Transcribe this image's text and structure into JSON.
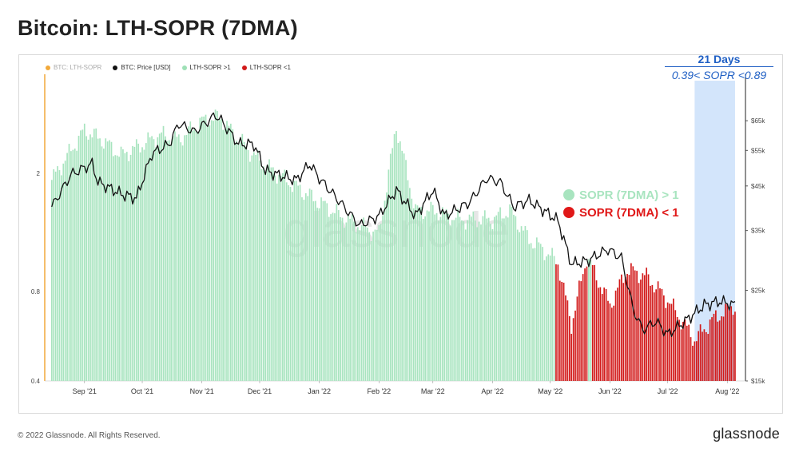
{
  "title": "Bitcoin: LTH-SOPR (7DMA)",
  "legend": [
    {
      "label": "BTC: LTH-SOPR",
      "color": "#f2a93b",
      "faded": true
    },
    {
      "label": "BTC: Price [USD]",
      "color": "#111111",
      "faded": false
    },
    {
      "label": "LTH-SOPR >1",
      "color": "#9ee0b6",
      "faded": false
    },
    {
      "label": "LTH-SOPR <1",
      "color": "#d11a1a",
      "faded": false
    }
  ],
  "callout": {
    "days": "21 Days",
    "range": "0.39< SOPR <0.89"
  },
  "key": [
    {
      "label": "SOPR (7DMA) > 1",
      "color": "#9ee0b6"
    },
    {
      "label": "SOPR (7DMA) < 1",
      "color": "#e01818"
    }
  ],
  "watermark": "glassnode",
  "footer": {
    "copyright": "© 2022 Glassnode. All Rights Reserved.",
    "logo": "glassnode"
  },
  "colors": {
    "green": "#a8e4bf",
    "red": "#d21a1a",
    "price": "#111111",
    "highlight": "#d3e5fb"
  },
  "chart_data": {
    "type": "bar",
    "title": "Bitcoin: LTH-SOPR (7DMA)",
    "x_range": [
      "2022-08-15",
      "2022-08-05"
    ],
    "x_ticks": [
      "Sep '21",
      "Oct '21",
      "Nov '21",
      "Dec '21",
      "Jan '22",
      "Feb '22",
      "Mar '22",
      "Apr '22",
      "May '22",
      "Jun '22",
      "Jul '22",
      "Aug '22"
    ],
    "y_left": {
      "label": "",
      "scale": "log",
      "ticks": [
        0.4,
        0.8,
        2
      ],
      "range": [
        0.4,
        4.0
      ]
    },
    "y_right": {
      "label": "",
      "scale": "log",
      "ticks": [
        "$15k",
        "$25k",
        "$35k",
        "$45k",
        "$55k",
        "$65k"
      ],
      "tick_values": [
        15000,
        25000,
        35000,
        45000,
        55000,
        65000
      ],
      "range": [
        15000,
        80000
      ]
    },
    "highlight_region": {
      "from": "2022-07-15",
      "to": "2022-08-05",
      "label": "21 Days"
    },
    "grid": false,
    "legend_position": "top-left",
    "sopr_series": {
      "name": "BTC: LTH-SOPR",
      "dates": [
        "2021-08-15",
        "2021-09-01",
        "2021-09-10",
        "2021-09-20",
        "2021-10-01",
        "2021-10-10",
        "2021-10-20",
        "2021-11-01",
        "2021-11-10",
        "2021-11-20",
        "2021-12-01",
        "2021-12-10",
        "2021-12-20",
        "2022-01-01",
        "2022-01-15",
        "2022-02-01",
        "2022-02-10",
        "2022-02-20",
        "2022-03-01",
        "2022-03-15",
        "2022-04-01",
        "2022-04-10",
        "2022-04-20",
        "2022-04-28",
        "2022-05-05",
        "2022-05-12",
        "2022-05-20",
        "2022-06-01",
        "2022-06-10",
        "2022-06-20",
        "2022-07-01",
        "2022-07-15",
        "2022-07-25",
        "2022-08-05"
      ],
      "values": [
        1.9,
        2.8,
        2.6,
        2.3,
        2.5,
        2.7,
        2.6,
        3.0,
        3.1,
        2.6,
        2.2,
        2.0,
        1.8,
        1.6,
        1.4,
        1.25,
        2.9,
        1.5,
        1.5,
        1.4,
        1.4,
        1.5,
        1.2,
        1.1,
        1.0,
        0.62,
        1.05,
        0.72,
        0.95,
        0.9,
        0.75,
        0.55,
        0.65,
        0.72
      ]
    },
    "price_series": {
      "name": "BTC: Price [USD]",
      "dates": [
        "2021-08-15",
        "2021-08-25",
        "2021-09-05",
        "2021-09-08",
        "2021-09-20",
        "2021-09-28",
        "2021-10-06",
        "2021-10-15",
        "2021-10-20",
        "2021-10-28",
        "2021-11-08",
        "2021-11-10",
        "2021-11-20",
        "2021-11-28",
        "2021-12-04",
        "2021-12-10",
        "2021-12-20",
        "2021-12-27",
        "2022-01-01",
        "2022-01-10",
        "2022-01-22",
        "2022-02-01",
        "2022-02-10",
        "2022-02-20",
        "2022-03-01",
        "2022-03-07",
        "2022-03-20",
        "2022-03-29",
        "2022-04-05",
        "2022-04-12",
        "2022-04-20",
        "2022-04-30",
        "2022-05-05",
        "2022-05-12",
        "2022-05-20",
        "2022-05-31",
        "2022-06-07",
        "2022-06-13",
        "2022-06-18",
        "2022-06-25",
        "2022-07-01",
        "2022-07-10",
        "2022-07-20",
        "2022-07-28",
        "2022-08-05"
      ],
      "values": [
        40000,
        48000,
        51000,
        46000,
        43000,
        42000,
        54000,
        57000,
        64000,
        61000,
        67000,
        66000,
        57000,
        57000,
        49000,
        48000,
        46500,
        51000,
        47000,
        42000,
        36000,
        38000,
        44000,
        38000,
        44000,
        38000,
        41000,
        47000,
        46000,
        40000,
        41500,
        38500,
        37000,
        29000,
        29500,
        31500,
        30000,
        22500,
        20000,
        21000,
        19500,
        21000,
        23000,
        23500,
        23000
      ]
    },
    "bars": {
      "series": [
        {
          "name": "LTH-SOPR >1",
          "condition": "SOPR > 1"
        },
        {
          "name": "LTH-SOPR <1",
          "condition": "SOPR < 1"
        }
      ]
    }
  }
}
